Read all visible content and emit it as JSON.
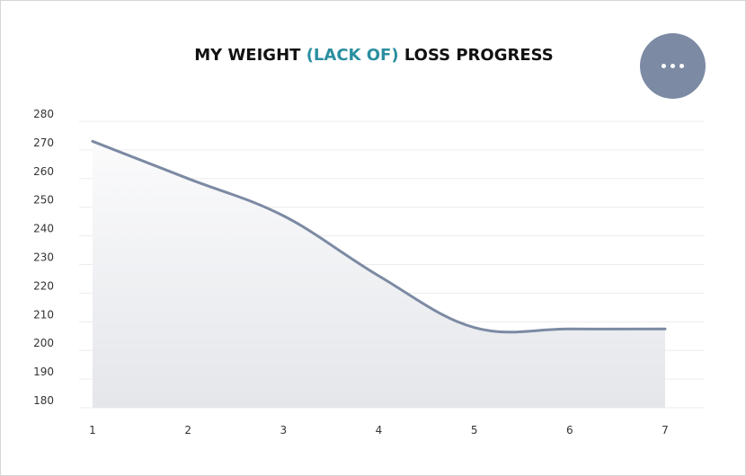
{
  "title": {
    "part1": "MY WEIGHT ",
    "accent": "(LACK OF)",
    "part2": " LOSS PROGRESS"
  },
  "menu_button": {
    "icon": "more-horizontal-icon"
  },
  "colors": {
    "line": "#7c8aa3",
    "accent": "#2a8fa0",
    "menu_button": "#7c8aa3",
    "area_top": "#fbfbfc",
    "area_bottom": "#e4e6ea",
    "grid": "#ececec"
  },
  "chart_data": {
    "type": "area",
    "title": "MY WEIGHT (LACK OF) LOSS PROGRESS",
    "xlabel": "",
    "ylabel": "",
    "x": [
      1,
      2,
      3,
      4,
      5,
      6,
      7
    ],
    "series": [
      {
        "values": [
          273,
          260,
          247,
          226,
          208,
          207.5,
          207.5
        ]
      }
    ],
    "xlim": [
      1,
      7
    ],
    "ylim": [
      180,
      280
    ],
    "yticks": [
      180,
      190,
      200,
      210,
      220,
      230,
      240,
      250,
      260,
      270,
      280
    ],
    "xticks": [
      1,
      2,
      3,
      4,
      5,
      6,
      7
    ],
    "grid": "horizontal",
    "legend": "none"
  }
}
